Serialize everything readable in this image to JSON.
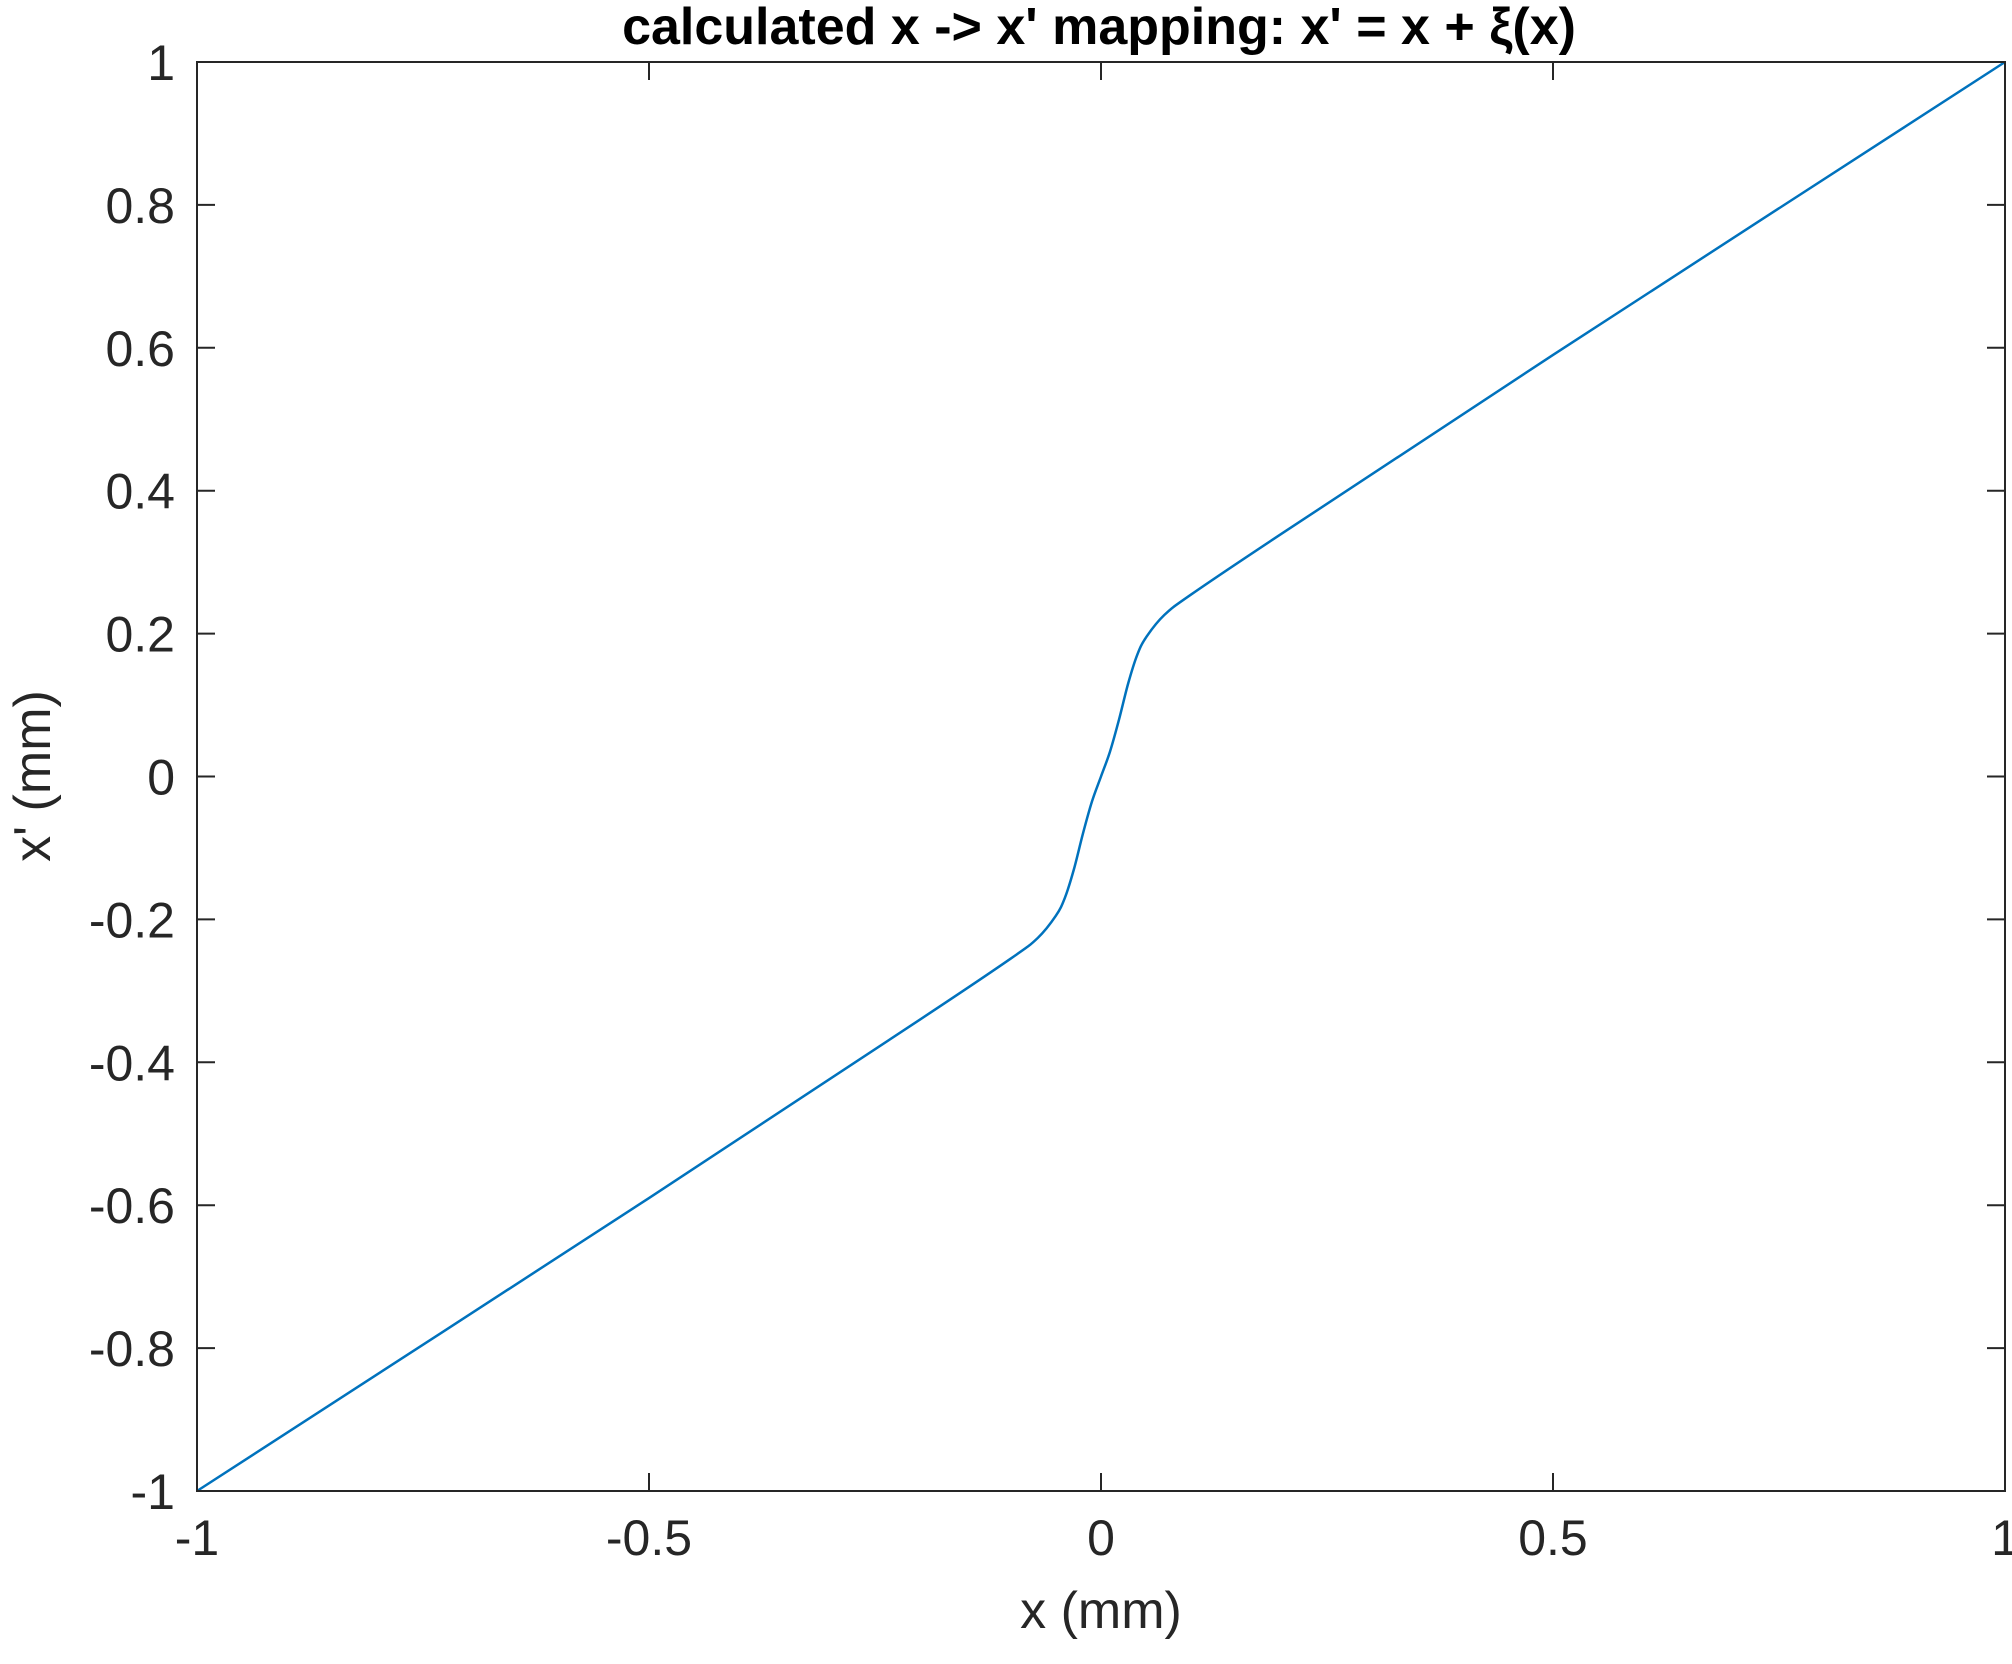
{
  "chart_data": {
    "type": "line",
    "title": "calculated x -> x' mapping: x' = x + ξ(x)",
    "xlabel": "x (mm)",
    "ylabel": "x' (mm)",
    "xlim": [
      -1,
      1
    ],
    "ylim": [
      -1,
      1
    ],
    "xticks": [
      -1,
      -0.5,
      0,
      0.5,
      1
    ],
    "xtick_labels": [
      "-1",
      "-0.5",
      "0",
      "0.5",
      "1"
    ],
    "yticks": [
      -1,
      -0.8,
      -0.6,
      -0.4,
      -0.2,
      0,
      0.2,
      0.4,
      0.6,
      0.8,
      1
    ],
    "ytick_labels": [
      "-1",
      "-0.8",
      "-0.6",
      "-0.4",
      "-0.2",
      "0",
      "0.2",
      "0.4",
      "0.6",
      "0.8",
      "1"
    ],
    "grid": false,
    "series": [
      {
        "color": "#0072BD",
        "x": [
          -1,
          -0.5,
          -0.2,
          -0.1,
          -0.07,
          -0.05,
          -0.04,
          -0.03,
          -0.02,
          -0.01,
          0,
          0.01,
          0.02,
          0.03,
          0.04,
          0.05,
          0.07,
          0.1,
          0.2,
          0.5,
          1
        ],
        "y": [
          -1,
          -0.59,
          -0.34,
          -0.255,
          -0.226,
          -0.195,
          -0.17,
          -0.13,
          -0.08,
          -0.035,
          0,
          0.035,
          0.08,
          0.13,
          0.17,
          0.195,
          0.226,
          0.255,
          0.34,
          0.59,
          1
        ]
      }
    ]
  }
}
